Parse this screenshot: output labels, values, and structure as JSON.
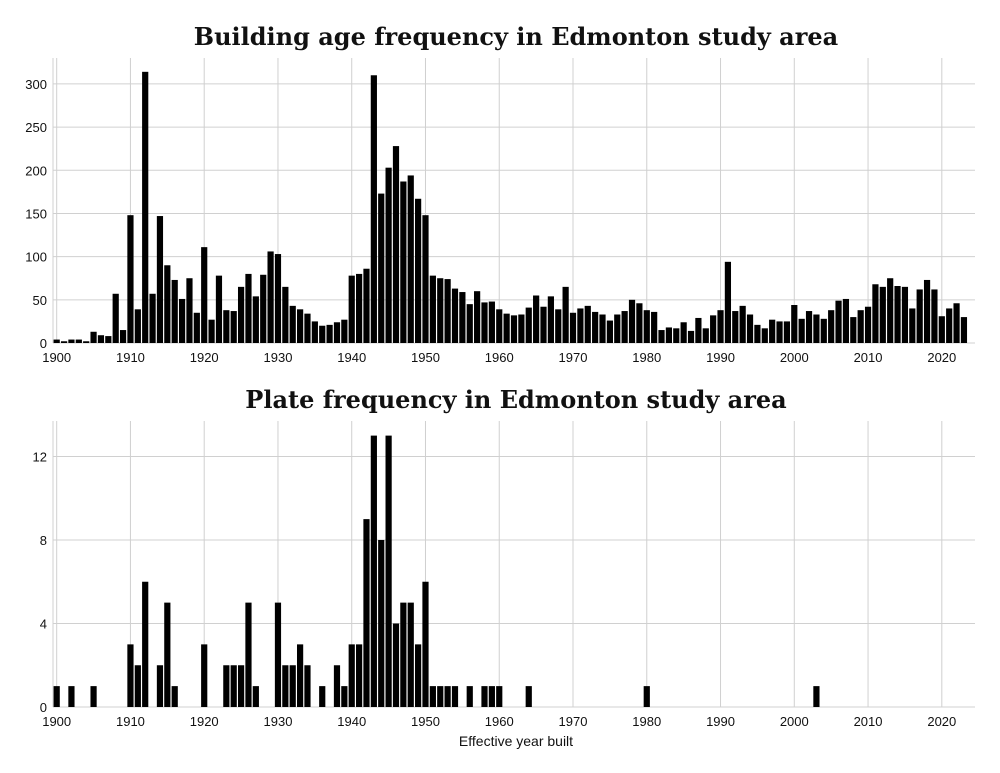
{
  "chart_data": [
    {
      "type": "bar",
      "title": "Building age frequency in Edmonton study area",
      "xlabel": "",
      "ylabel": "",
      "xlim": [
        1899.5,
        2024.5
      ],
      "ylim": [
        0,
        330
      ],
      "xticks": [
        "1900",
        "1910",
        "1920",
        "1930",
        "1940",
        "1950",
        "1960",
        "1970",
        "1980",
        "1990",
        "2000",
        "2010",
        "2020"
      ],
      "yticks": [
        "0",
        "50",
        "100",
        "150",
        "200",
        "250",
        "300"
      ],
      "years": [
        1900,
        1901,
        1902,
        1903,
        1904,
        1905,
        1906,
        1907,
        1908,
        1909,
        1910,
        1911,
        1912,
        1913,
        1914,
        1915,
        1916,
        1917,
        1918,
        1919,
        1920,
        1921,
        1922,
        1923,
        1924,
        1925,
        1926,
        1927,
        1928,
        1929,
        1930,
        1931,
        1932,
        1933,
        1934,
        1935,
        1936,
        1937,
        1938,
        1939,
        1940,
        1941,
        1942,
        1943,
        1944,
        1945,
        1946,
        1947,
        1948,
        1949,
        1950,
        1951,
        1952,
        1953,
        1954,
        1955,
        1956,
        1957,
        1958,
        1959,
        1960,
        1961,
        1962,
        1963,
        1964,
        1965,
        1966,
        1967,
        1968,
        1969,
        1970,
        1971,
        1972,
        1973,
        1974,
        1975,
        1976,
        1977,
        1978,
        1979,
        1980,
        1981,
        1982,
        1983,
        1984,
        1985,
        1986,
        1987,
        1988,
        1989,
        1990,
        1991,
        1992,
        1993,
        1994,
        1995,
        1996,
        1997,
        1998,
        1999,
        2000,
        2001,
        2002,
        2003,
        2004,
        2005,
        2006,
        2007,
        2008,
        2009,
        2010,
        2011,
        2012,
        2013,
        2014,
        2015,
        2016,
        2017,
        2018,
        2019,
        2020,
        2021,
        2022,
        2023
      ],
      "values": [
        4,
        2,
        4,
        4,
        2,
        13,
        9,
        8,
        57,
        15,
        148,
        39,
        314,
        57,
        147,
        90,
        73,
        51,
        75,
        35,
        111,
        27,
        78,
        38,
        37,
        65,
        80,
        54,
        79,
        106,
        103,
        65,
        43,
        39,
        34,
        25,
        20,
        21,
        24,
        27,
        78,
        80,
        86,
        310,
        173,
        203,
        228,
        187,
        194,
        167,
        148,
        78,
        75,
        74,
        63,
        59,
        45,
        60,
        47,
        48,
        39,
        34,
        32,
        33,
        41,
        55,
        42,
        54,
        39,
        65,
        35,
        40,
        43,
        36,
        33,
        26,
        33,
        37,
        50,
        46,
        38,
        36,
        15,
        18,
        17,
        24,
        14,
        29,
        17,
        32,
        38,
        94,
        37,
        43,
        33,
        21,
        17,
        27,
        25,
        25,
        44,
        28,
        37,
        33,
        28,
        38,
        49,
        51,
        30,
        38,
        42,
        68,
        65,
        75,
        66,
        65,
        40,
        62,
        73,
        62,
        31,
        40,
        46,
        30
      ]
    },
    {
      "type": "bar",
      "title": "Plate frequency in Edmonton study area",
      "xlabel": "Effective year built",
      "ylabel": "",
      "xlim": [
        1899.5,
        2024.5
      ],
      "ylim": [
        0,
        13.7
      ],
      "xticks": [
        "1900",
        "1910",
        "1920",
        "1930",
        "1940",
        "1950",
        "1960",
        "1970",
        "1980",
        "1990",
        "2000",
        "2010",
        "2020"
      ],
      "yticks": [
        "0",
        "4",
        "8",
        "12"
      ],
      "years": [
        1900,
        1902,
        1905,
        1910,
        1911,
        1912,
        1914,
        1915,
        1916,
        1920,
        1923,
        1924,
        1925,
        1926,
        1927,
        1930,
        1931,
        1932,
        1933,
        1934,
        1936,
        1938,
        1939,
        1940,
        1941,
        1942,
        1943,
        1944,
        1945,
        1946,
        1947,
        1948,
        1949,
        1950,
        1951,
        1952,
        1953,
        1954,
        1956,
        1958,
        1959,
        1960,
        1964,
        1980,
        2003
      ],
      "values": [
        1,
        1,
        1,
        3,
        2,
        6,
        2,
        5,
        1,
        3,
        2,
        2,
        2,
        5,
        1,
        5,
        2,
        2,
        3,
        2,
        1,
        2,
        1,
        3,
        3,
        9,
        13,
        8,
        13,
        4,
        5,
        5,
        3,
        6,
        1,
        1,
        1,
        1,
        1,
        1,
        1,
        1,
        1,
        1,
        1
      ]
    }
  ]
}
